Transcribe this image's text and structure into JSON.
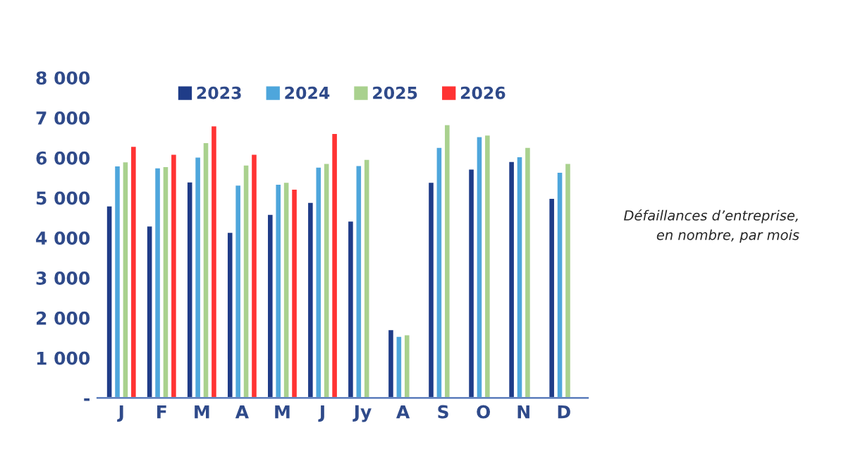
{
  "chart_data": {
    "type": "bar",
    "categories": [
      "J",
      "F",
      "M",
      "A",
      "M",
      "J",
      "Jy",
      "A",
      "S",
      "O",
      "N",
      "D"
    ],
    "series": [
      {
        "name": "2023",
        "color": "#1f3c88",
        "values": [
          4810,
          4310,
          5410,
          4150,
          4600,
          4900,
          4430,
          1720,
          5400,
          5730,
          5920,
          5000
        ]
      },
      {
        "name": "2024",
        "color": "#4ea6dc",
        "values": [
          5810,
          5760,
          6030,
          5330,
          5350,
          5780,
          5820,
          1550,
          6270,
          6540,
          6040,
          5650
        ]
      },
      {
        "name": "2025",
        "color": "#a9d18e",
        "values": [
          5910,
          5790,
          6390,
          5830,
          5400,
          5870,
          5970,
          1590,
          6840,
          6580,
          6270,
          5870
        ]
      },
      {
        "name": "2026",
        "color": "#ff3333",
        "values": [
          6300,
          6100,
          6810,
          6100,
          5230,
          6620,
          null,
          null,
          null,
          null,
          null,
          null
        ]
      }
    ],
    "ylim": [
      0,
      8000
    ],
    "yticks": [
      {
        "value": 0,
        "label": "-"
      },
      {
        "value": 1000,
        "label": "1 000"
      },
      {
        "value": 2000,
        "label": "2 000"
      },
      {
        "value": 3000,
        "label": "3 000"
      },
      {
        "value": 4000,
        "label": "4 000"
      },
      {
        "value": 5000,
        "label": "5 000"
      },
      {
        "value": 6000,
        "label": "6 000"
      },
      {
        "value": 7000,
        "label": "7 000"
      },
      {
        "value": 8000,
        "label": "8 000"
      }
    ],
    "grid": false,
    "legend": "top",
    "annotations": [
      "Défaillances d’entreprise,\nen nombre, par mois"
    ]
  }
}
